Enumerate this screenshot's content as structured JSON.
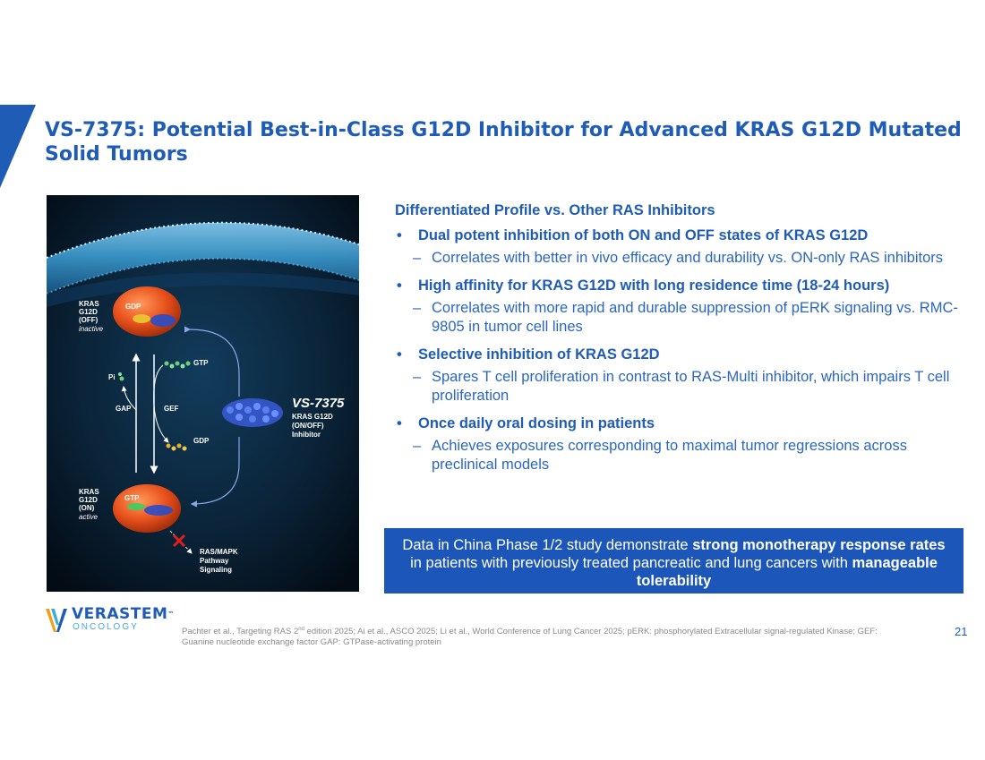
{
  "slide": {
    "title": "VS-7375: Potential Best-in-Class G12D Inhibitor for Advanced KRAS G12D Mutated Solid Tumors",
    "accent_color": "#1f5cb5"
  },
  "figure": {
    "off_label": [
      "KRAS",
      "G12D",
      "(OFF)"
    ],
    "off_state": "inactive",
    "on_label": [
      "KRAS",
      "G12D",
      "(ON)"
    ],
    "on_state": "active",
    "gdp_bound": "GDP",
    "gtp_bound": "GTP",
    "gtp": "GTP",
    "gdp": "GDP",
    "pi": "Pi",
    "gap": "GAP",
    "gef": "GEF",
    "drug_name": "VS-7375",
    "drug_desc": [
      "KRAS G12D",
      "(ON/OFF)",
      "Inhibitor"
    ],
    "pathway": [
      "RAS/MAPK",
      "Pathway",
      "Signaling"
    ]
  },
  "content": {
    "heading": "Differentiated Profile vs. Other RAS Inhibitors",
    "bullet_symbol": "•",
    "dash_symbol": "–",
    "items": [
      {
        "main": "Dual potent inhibition of both ON and OFF states of KRAS G12D",
        "sub": "Correlates with better in vivo efficacy and durability vs. ON-only RAS inhibitors"
      },
      {
        "main": "High affinity for KRAS G12D with long residence time (18-24 hours)",
        "sub": "Correlates with more rapid and durable suppression of pERK signaling vs. RMC-9805 in tumor cell lines"
      },
      {
        "main": "Selective inhibition of KRAS G12D",
        "sub": "Spares T cell proliferation in contrast to RAS-Multi inhibitor, which impairs T cell proliferation"
      },
      {
        "main": "Once daily oral dosing in patients",
        "sub": "Achieves exposures corresponding to maximal tumor regressions across preclinical models"
      }
    ]
  },
  "callout": {
    "part1": "Data in China Phase 1/2 study demonstrate ",
    "bold1": "strong monotherapy response rates",
    "part2": " in patients with previously treated pancreatic and lung cancers with ",
    "bold2": "manageable tolerability"
  },
  "logo": {
    "name": "VERASTEM",
    "tm": "™",
    "sub": "ONCOLOGY"
  },
  "footnote": {
    "part1": "Pachter et al., Targeting RAS 2",
    "sup": "nd",
    "part2": " edition 2025; Ai et al., ASCO 2025; Li et al., World Conference of Lung Cancer 2025; pERK: phosphorylated Extracellular signal-regulated Kinase; GEF: Guanine nucleotide exchange factor GAP: GTPase-activating protein"
  },
  "page_number": "21"
}
